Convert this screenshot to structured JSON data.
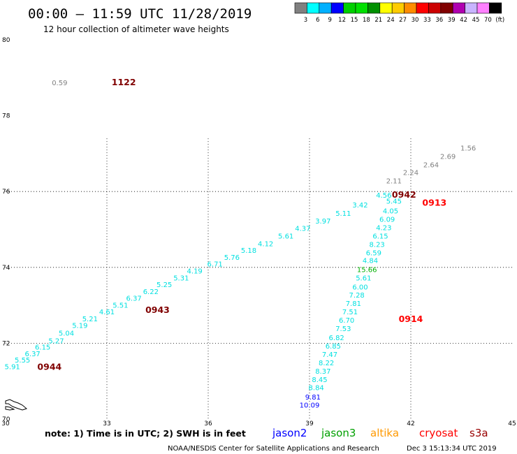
{
  "header": {
    "title": "00:00 – 11:59 UTC 11/28/2019",
    "subtitle": "12 hour collection of altimeter wave heights"
  },
  "colorbar": {
    "colors": [
      "#808080",
      "#00ffff",
      "#00b0ff",
      "#0000ff",
      "#00d000",
      "#00e000",
      "#009000",
      "#ffff00",
      "#ffcc00",
      "#ff8c00",
      "#ff0000",
      "#cc0000",
      "#800000",
      "#b000b0",
      "#c8b4ff",
      "#ff80ff",
      "#000000"
    ],
    "labels": [
      "3",
      "6",
      "9",
      "12",
      "15",
      "18",
      "21",
      "24",
      "27",
      "30",
      "33",
      "36",
      "39",
      "42",
      "45",
      "70",
      "(ft)"
    ]
  },
  "chart_data": {
    "type": "scatter",
    "title": "00:00 – 11:59 UTC 11/28/2019",
    "subtitle": "12 hour collection of altimeter wave heights",
    "xlabel": "",
    "ylabel": "",
    "xlim": [
      30,
      45
    ],
    "ylim": [
      70,
      80
    ],
    "xticks": [
      "30",
      "33",
      "36",
      "39",
      "42",
      "45"
    ],
    "yticks": [
      "70",
      "72",
      "74",
      "76",
      "78",
      "80"
    ],
    "grid": true,
    "series": [
      {
        "name": "s3a",
        "color": "#00e0e0",
        "points": [
          {
            "x": 30.2,
            "y": 71.32,
            "v": "5.91"
          },
          {
            "x": 30.5,
            "y": 71.49,
            "v": "5.55"
          },
          {
            "x": 30.8,
            "y": 71.66,
            "v": "6.37"
          },
          {
            "x": 31.1,
            "y": 71.83,
            "v": "6.15"
          },
          {
            "x": 31.5,
            "y": 72.0,
            "v": "5.27"
          },
          {
            "x": 31.8,
            "y": 72.2,
            "v": "5.04"
          },
          {
            "x": 32.2,
            "y": 72.4,
            "v": "5.19"
          },
          {
            "x": 32.5,
            "y": 72.58,
            "v": "5.21"
          },
          {
            "x": 33.0,
            "y": 72.76,
            "v": "4.61"
          },
          {
            "x": 33.4,
            "y": 72.94,
            "v": "5.51"
          },
          {
            "x": 33.8,
            "y": 73.12,
            "v": "6.37"
          },
          {
            "x": 34.3,
            "y": 73.3,
            "v": "6.22"
          },
          {
            "x": 34.7,
            "y": 73.48,
            "v": "5.25"
          },
          {
            "x": 35.2,
            "y": 73.66,
            "v": "5.31"
          },
          {
            "x": 35.6,
            "y": 73.84,
            "v": "4.19"
          },
          {
            "x": 36.2,
            "y": 74.02,
            "v": "6.71"
          },
          {
            "x": 36.7,
            "y": 74.2,
            "v": "5.76"
          },
          {
            "x": 37.2,
            "y": 74.38,
            "v": "5.18"
          },
          {
            "x": 37.7,
            "y": 74.56,
            "v": "4.12"
          },
          {
            "x": 38.3,
            "y": 74.76,
            "v": "5.61"
          },
          {
            "x": 38.8,
            "y": 74.96,
            "v": "4.37"
          },
          {
            "x": 39.4,
            "y": 75.16,
            "v": "3.97"
          },
          {
            "x": 40.0,
            "y": 75.36,
            "v": "5.11"
          },
          {
            "x": 40.5,
            "y": 75.58,
            "v": "3.42"
          },
          {
            "x": 41.2,
            "y": 75.84,
            "v": "4.56"
          }
        ]
      },
      {
        "name": "s3a-gray",
        "color": "#808080",
        "points": [
          {
            "x": 41.5,
            "y": 76.22,
            "v": "2.11"
          },
          {
            "x": 42.0,
            "y": 76.44,
            "v": "2.24"
          },
          {
            "x": 42.6,
            "y": 76.64,
            "v": "2.64"
          },
          {
            "x": 43.1,
            "y": 76.86,
            "v": "2.69"
          },
          {
            "x": 43.7,
            "y": 77.08,
            "v": "1.56"
          }
        ]
      },
      {
        "name": "cryosat",
        "color": "#00e0e0",
        "points": [
          {
            "x": 41.5,
            "y": 75.68,
            "v": "5.45"
          },
          {
            "x": 41.4,
            "y": 75.42,
            "v": "4.05"
          },
          {
            "x": 41.3,
            "y": 75.2,
            "v": "6.09"
          },
          {
            "x": 41.2,
            "y": 74.98,
            "v": "4.23"
          },
          {
            "x": 41.1,
            "y": 74.76,
            "v": "6.15"
          },
          {
            "x": 41.0,
            "y": 74.54,
            "v": "8.23"
          },
          {
            "x": 40.9,
            "y": 74.32,
            "v": "6.59"
          },
          {
            "x": 40.8,
            "y": 74.12,
            "v": "4.84"
          },
          {
            "x": 40.6,
            "y": 73.66,
            "v": "5.61"
          },
          {
            "x": 40.5,
            "y": 73.42,
            "v": "6.00"
          },
          {
            "x": 40.4,
            "y": 73.2,
            "v": "7.28"
          },
          {
            "x": 40.3,
            "y": 72.98,
            "v": "7.81"
          },
          {
            "x": 40.2,
            "y": 72.76,
            "v": "7.51"
          },
          {
            "x": 40.1,
            "y": 72.54,
            "v": "6.70"
          },
          {
            "x": 40.0,
            "y": 72.32,
            "v": "7.53"
          },
          {
            "x": 39.8,
            "y": 72.08,
            "v": "6.82"
          },
          {
            "x": 39.7,
            "y": 71.86,
            "v": "6.85"
          },
          {
            "x": 39.6,
            "y": 71.64,
            "v": "7.47"
          },
          {
            "x": 39.5,
            "y": 71.42,
            "v": "8.22"
          },
          {
            "x": 39.4,
            "y": 71.2,
            "v": "8.37"
          },
          {
            "x": 39.3,
            "y": 70.98,
            "v": "8.45"
          },
          {
            "x": 39.2,
            "y": 70.76,
            "v": "8.84"
          }
        ]
      },
      {
        "name": "cryosat-green",
        "color": "#00b000",
        "points": [
          {
            "x": 40.7,
            "y": 73.88,
            "v": "15.66"
          }
        ]
      },
      {
        "name": "cryosat-blue",
        "color": "#0000ff",
        "points": [
          {
            "x": 39.1,
            "y": 70.52,
            "v": "9.81"
          },
          {
            "x": 39.0,
            "y": 70.3,
            "v": "10.09"
          }
        ]
      },
      {
        "name": "north",
        "color": "#808080",
        "points": [
          {
            "x": 31.6,
            "y": 78.8,
            "v": "0.59"
          }
        ]
      }
    ],
    "annotations": [
      {
        "x": 33.5,
        "y": 78.8,
        "text": "1122",
        "color": "#800000"
      },
      {
        "x": 31.3,
        "y": 71.3,
        "text": "0944",
        "color": "#800000"
      },
      {
        "x": 34.5,
        "y": 72.8,
        "text": "0943",
        "color": "#800000"
      },
      {
        "x": 41.8,
        "y": 75.84,
        "text": "0942",
        "color": "#800000"
      },
      {
        "x": 42.7,
        "y": 75.63,
        "text": "0913",
        "color": "#ff0000"
      },
      {
        "x": 42.0,
        "y": 72.56,
        "text": "0914",
        "color": "#ff0000"
      }
    ]
  },
  "footer": {
    "note": "note:  1) Time is in UTC;  2) SWH is in feet",
    "satellites": [
      {
        "name": "jason2",
        "color": "#0000ff"
      },
      {
        "name": "jason3",
        "color": "#00a000"
      },
      {
        "name": "altika",
        "color": "#ff9900"
      },
      {
        "name": "cryosat",
        "color": "#ff0000"
      },
      {
        "name": "s3a",
        "color": "#990000"
      }
    ],
    "credit": "NOAA/NESDIS Center for Satellite Applications and Research",
    "timestamp": "Dec  3 15:13:34 UTC 2019"
  }
}
